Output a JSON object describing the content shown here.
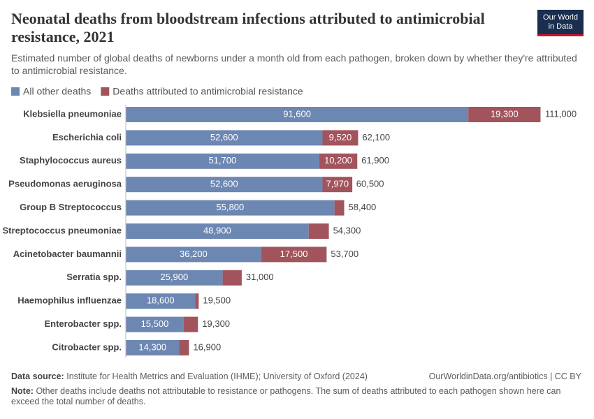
{
  "chart_data": {
    "type": "bar",
    "orientation": "horizontal",
    "stacked": true,
    "title": "Neonatal deaths from bloodstream infections attributed to antimicrobial resistance, 2021",
    "subtitle": "Estimated number of global deaths of newborns under a month old from each pathogen, broken down by whether they're attributed to antimicrobial resistance.",
    "logo": "Our World in Data",
    "categories": [
      "Klebsiella pneumoniae",
      "Escherichia coli",
      "Staphylococcus aureus",
      "Pseudomonas aeruginosa",
      "Group B Streptococcus",
      "Streptococcus pneumoniae",
      "Acinetobacter baumannii",
      "Serratia spp.",
      "Haemophilus influenzae",
      "Enterobacter spp.",
      "Citrobacter spp."
    ],
    "series": [
      {
        "name": "All other deaths",
        "color": "#6d87b3",
        "values": [
          91600,
          52600,
          51700,
          52600,
          55800,
          48900,
          36200,
          25900,
          18600,
          15500,
          14300
        ],
        "value_labels": [
          "91,600",
          "52,600",
          "51,700",
          "52,600",
          "55,800",
          "48,900",
          "36,200",
          "25,900",
          "18,600",
          "15,500",
          "14,300"
        ]
      },
      {
        "name": "Deaths attributed to antimicrobial resistance",
        "color": "#a2545c",
        "values": [
          19300,
          9520,
          10200,
          7970,
          2600,
          5400,
          17500,
          5100,
          900,
          3800,
          2600
        ],
        "value_labels": [
          "19,300",
          "9,520",
          "10,200",
          "7,970",
          null,
          null,
          "17,500",
          null,
          null,
          null,
          null
        ]
      }
    ],
    "totals": [
      111000,
      62100,
      61900,
      60500,
      58400,
      54300,
      53700,
      31000,
      19500,
      19300,
      16900
    ],
    "total_labels": [
      "111,000",
      "62,100",
      "61,900",
      "60,500",
      "58,400",
      "54,300",
      "53,700",
      "31,000",
      "19,500",
      "19,300",
      "16,900"
    ],
    "source_label": "Data source:",
    "source": "Institute for Health Metrics and Evaluation (IHME); University of Oxford (2024)",
    "url": "OurWorldinData.org/antibiotics | CC BY",
    "note_label": "Note:",
    "note": "Other deaths include deaths not attributable to resistance or pathogens. The sum of deaths attributed to each pathogen shown here can exceed the total number of deaths."
  }
}
